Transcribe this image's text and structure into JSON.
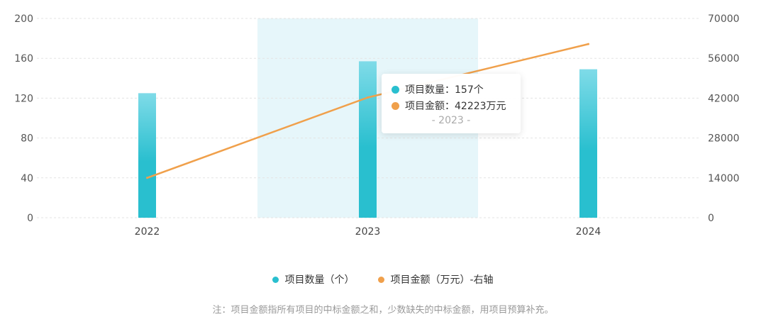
{
  "chart_data": {
    "type": "bar+line",
    "categories": [
      "2022",
      "2023",
      "2024"
    ],
    "series": [
      {
        "name": "项目数量（个）",
        "type": "bar",
        "axis": "left",
        "values": [
          125,
          157,
          149
        ],
        "color": "#29bfcf"
      },
      {
        "name": "项目金额（万元）-右轴",
        "type": "line",
        "axis": "right",
        "values": [
          14000,
          42223,
          61000
        ],
        "color": "#f0a04b"
      }
    ],
    "y_left": {
      "ticks": [
        "0",
        "40",
        "80",
        "120",
        "160",
        "200"
      ],
      "range": [
        0,
        200
      ]
    },
    "y_right": {
      "ticks": [
        "0",
        "14000",
        "28000",
        "42000",
        "56000",
        "70000"
      ],
      "range": [
        0,
        70000
      ]
    },
    "highlight_category": "2023",
    "grid": true,
    "legend_position": "bottom"
  },
  "tooltip": {
    "count_label": "项目数量：157个",
    "amount_label": "项目金额：42223万元",
    "category": "- 2023 -"
  },
  "legend": {
    "count": "项目数量（个）",
    "amount": "项目金额（万元）-右轴"
  },
  "note": "注：项目金额指所有项目的中标金额之和，少数缺失的中标金额，用项目预算补充。",
  "colors": {
    "bar": "#29bfcf",
    "line": "#f0a04b",
    "highlight": "#e6f6fa",
    "grid": "#e3e3e3"
  }
}
